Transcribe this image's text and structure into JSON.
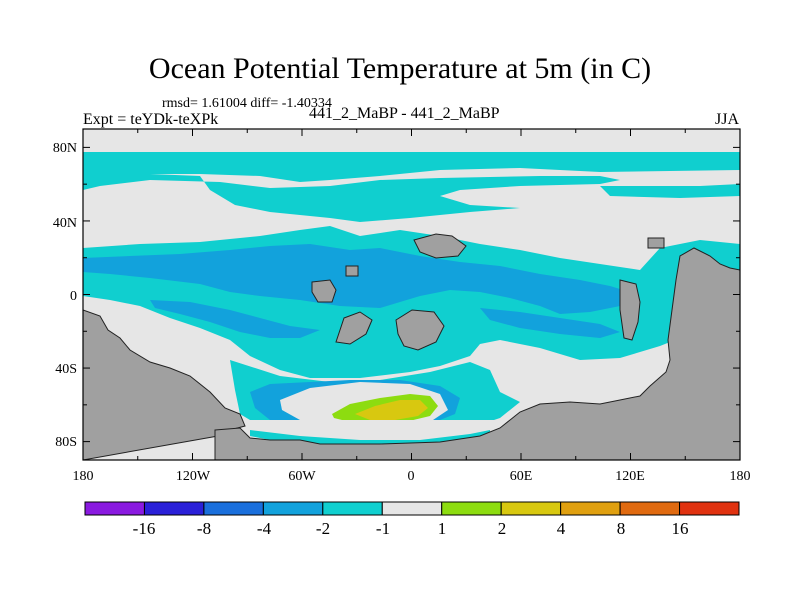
{
  "title": "Ocean Potential Temperature at 5m (in C)",
  "stats": "rmsd= 1.61004 diff= -1.40334",
  "experiment": "Expt = teYDk-teXPk",
  "experiment_name": "441_2_MaBP - 441_2_MaBP",
  "season": "JJA",
  "lat_labels": [
    "80N",
    "40N",
    "0",
    "40S",
    "80S"
  ],
  "lon_labels": [
    "180",
    "120W",
    "60W",
    "0",
    "60E",
    "120E",
    "180"
  ],
  "colorbar": {
    "colors": [
      "#8a1ae0",
      "#2a20d8",
      "#1a6fdc",
      "#12a2dc",
      "#10cfcf",
      "#e6e6e6",
      "#8ddc10",
      "#d8c810",
      "#e0a010",
      "#e06a10",
      "#e03210"
    ],
    "labels": [
      "-16",
      "-8",
      "-4",
      "-2",
      "-1",
      "1",
      "2",
      "4",
      "8",
      "16"
    ]
  },
  "colors": {
    "land": "#a0a0a0",
    "cyan": "#10cfcf",
    "light_blue": "#12a2dc",
    "neutral": "#e6e6e6",
    "yellow": "#d8c810",
    "green": "#8ddc10"
  }
}
